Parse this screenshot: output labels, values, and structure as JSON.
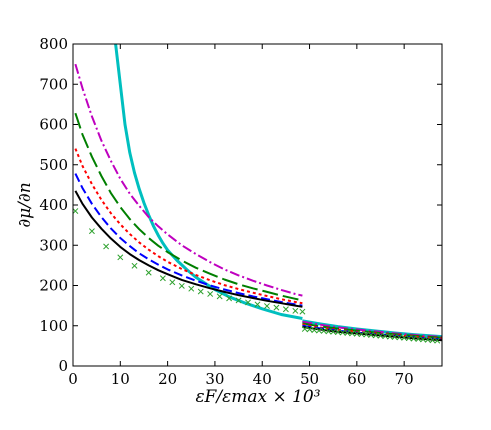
{
  "chart_data": {
    "type": "line",
    "title": "",
    "xlabel": "εF/εmax × 10³",
    "ylabel": "∂μ/∂n",
    "xlim": [
      0,
      78
    ],
    "ylim": [
      0,
      800
    ],
    "xticks": [
      0,
      10,
      20,
      30,
      40,
      50,
      60,
      70
    ],
    "yticks": [
      0,
      100,
      200,
      300,
      400,
      500,
      600,
      700,
      800
    ],
    "grid": false,
    "legend": "none",
    "series": [
      {
        "style": "solid",
        "color": "#00bfbf",
        "width": 3,
        "segments": [
          {
            "x": [
              9.0,
              10,
              11,
              12,
              13,
              14,
              15,
              16,
              17,
              18,
              19,
              20,
              22,
              24,
              26,
              28,
              30,
              33,
              36,
              40,
              44,
              48.5
            ],
            "y": [
              800,
              700,
              600,
              530,
              480,
              440,
              405,
              375,
              348,
              325,
              305,
              288,
              262,
              240,
              220,
              205,
              190,
              172,
              158,
              142,
              128,
              118
            ]
          },
          {
            "x": [
              48.5,
              52,
              56,
              60,
              64,
              68,
              72,
              78
            ],
            "y": [
              112,
              105,
              98,
              92,
              87,
              82,
              78,
              73
            ]
          }
        ]
      },
      {
        "style": "dashdot",
        "color": "#bf00bf",
        "width": 2,
        "segments": [
          {
            "x": [
              0.5,
              2,
              4,
              6,
              8,
              10,
              12,
              14,
              16,
              18,
              20,
              23,
              26,
              29,
              32,
              35,
              38,
              41,
              44,
              47,
              48.5
            ],
            "y": [
              750,
              690,
              620,
              560,
              510,
              465,
              428,
              398,
              370,
              347,
              327,
              300,
              278,
              258,
              240,
              225,
              212,
              200,
              189,
              179,
              175
            ]
          },
          {
            "x": [
              48.5,
              52,
              56,
              60,
              64,
              68,
              72,
              78
            ],
            "y": [
              110,
              103,
              96,
              91,
              86,
              81,
              77,
              72
            ]
          }
        ]
      },
      {
        "style": "longdash",
        "color": "#007f00",
        "width": 2,
        "segments": [
          {
            "x": [
              0.5,
              2,
              4,
              6,
              8,
              10,
              12,
              14,
              16,
              18,
              20,
              23,
              26,
              29,
              32,
              35,
              38,
              41,
              44,
              47,
              48.5
            ],
            "y": [
              628,
              575,
              520,
              472,
              430,
              395,
              365,
              340,
              318,
              299,
              283,
              262,
              244,
              229,
              215,
              203,
              193,
              184,
              175,
              167,
              163
            ]
          },
          {
            "x": [
              48.5,
              52,
              56,
              60,
              64,
              68,
              72,
              78
            ],
            "y": [
              106,
              99,
              93,
              88,
              83,
              79,
              75,
              70
            ]
          }
        ]
      },
      {
        "style": "dotted",
        "color": "#ff0000",
        "width": 2,
        "segments": [
          {
            "x": [
              0.5,
              2,
              4,
              6,
              8,
              10,
              12,
              14,
              16,
              18,
              20,
              23,
              26,
              29,
              32,
              35,
              38,
              41,
              44,
              47,
              48.5
            ],
            "y": [
              540,
              497,
              452,
              413,
              380,
              352,
              328,
              307,
              289,
              273,
              259,
              241,
              226,
              213,
              201,
              191,
              182,
              174,
              166,
              159,
              156
            ]
          },
          {
            "x": [
              48.5,
              52,
              56,
              60,
              64,
              68,
              72,
              78
            ],
            "y": [
              103,
              96,
              90,
              85,
              81,
              77,
              73,
              68
            ]
          }
        ]
      },
      {
        "style": "dashed",
        "color": "#0000ff",
        "width": 2,
        "segments": [
          {
            "x": [
              0.5,
              2,
              4,
              6,
              8,
              10,
              12,
              14,
              16,
              18,
              20,
              23,
              26,
              29,
              32,
              35,
              38,
              41,
              44,
              47,
              48.5
            ],
            "y": [
              478,
              442,
              403,
              370,
              342,
              318,
              298,
              280,
              265,
              252,
              240,
              225,
              212,
              200,
              190,
              181,
              173,
              166,
              159,
              153,
              150
            ]
          },
          {
            "x": [
              48.5,
              52,
              56,
              60,
              64,
              68,
              72,
              78
            ],
            "y": [
              100,
              94,
              88,
              83,
              79,
              75,
              71,
              66
            ]
          }
        ]
      },
      {
        "style": "solid",
        "color": "#000000",
        "width": 2,
        "segments": [
          {
            "x": [
              0.5,
              2,
              4,
              6,
              8,
              10,
              12,
              14,
              16,
              18,
              20,
              23,
              26,
              29,
              32,
              35,
              38,
              41,
              44,
              47,
              48.5
            ],
            "y": [
              435,
              403,
              369,
              341,
              317,
              296,
              278,
              263,
              250,
              238,
              228,
              214,
              203,
              193,
              184,
              176,
              169,
              162,
              156,
              150,
              147
            ]
          },
          {
            "x": [
              48.5,
              52,
              56,
              60,
              64,
              68,
              72,
              78
            ],
            "y": [
              97,
              91,
              85,
              81,
              77,
              73,
              69,
              64
            ]
          }
        ]
      },
      {
        "style": "markers",
        "marker": "x",
        "color": "#2ca02c",
        "segments": [
          {
            "x": [
              0.5,
              4,
              7,
              10,
              13,
              16,
              19,
              21,
              23,
              25,
              27,
              29,
              31,
              33,
              35,
              37,
              39,
              41,
              43,
              45,
              47,
              48.5
            ],
            "y": [
              385,
              335,
              297,
              270,
              249,
              232,
              218,
              208,
              199,
              192,
              185,
              179,
              173,
              168,
              163,
              158,
              153,
              149,
              145,
              141,
              137,
              135
            ]
          },
          {
            "x": [
              49,
              50,
              51,
              52,
              53,
              54,
              55,
              56,
              57,
              58,
              59,
              60,
              61,
              62,
              63,
              64,
              65,
              66,
              67,
              68,
              69,
              70,
              71,
              72,
              73,
              74,
              75,
              76,
              77
            ],
            "y": [
              92,
              91,
              89,
              88,
              87,
              86,
              85,
              84,
              83,
              82,
              81,
              80,
              79,
              78,
              77,
              76,
              75,
              74,
              73,
              72,
              71,
              70,
              69,
              68,
              67,
              66,
              65,
              64,
              63
            ]
          }
        ]
      }
    ]
  }
}
